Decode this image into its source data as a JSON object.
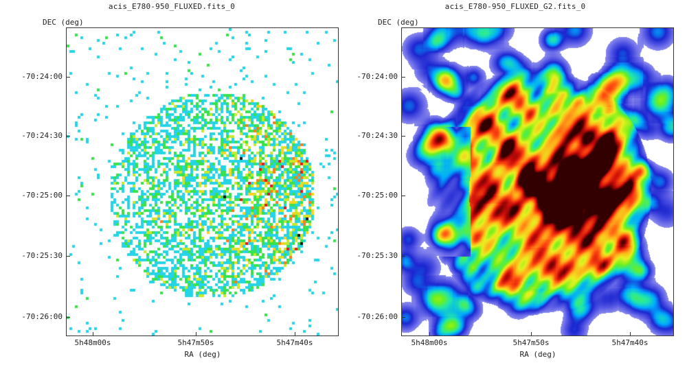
{
  "left_panel": {
    "title": "acis_E780-950_FLUXED.fits_0",
    "y_axis_label": "DEC (deg)",
    "x_axis_label": "RA (deg)",
    "y_ticks": [
      "-70:24:00",
      "-70:24:30",
      "-70:25:00",
      "-70:25:30",
      "-70:26:00"
    ],
    "x_ticks": [
      "5h48m00s",
      "5h47m50s",
      "5h47m40s"
    ],
    "image_style": "raw-binned-counts",
    "colormap": [
      "#ffffff",
      "#25d4e6",
      "#38e24a",
      "#c8e82a",
      "#ffd21f",
      "#ff7a1a",
      "#e41a1a",
      "#111111"
    ]
  },
  "right_panel": {
    "title": "acis_E780-950_FLUXED_G2.fits_0",
    "y_axis_label": "DEC (deg)",
    "x_axis_label": "RA (deg)",
    "y_ticks": [
      "-70:24:00",
      "-70:24:30",
      "-70:25:00",
      "-70:25:30",
      "-70:26:00"
    ],
    "x_ticks": [
      "5h48m00s",
      "5h47m50s",
      "5h47m40s"
    ],
    "image_style": "gaussian-smoothed",
    "colormap": [
      "#ffffff",
      "#a9a8f2",
      "#5b5de6",
      "#1c26d0",
      "#00a9ff",
      "#22e8a8",
      "#6ef01c",
      "#e8f020",
      "#ffb21a",
      "#ff4a10",
      "#c80a0a",
      "#320000"
    ]
  }
}
